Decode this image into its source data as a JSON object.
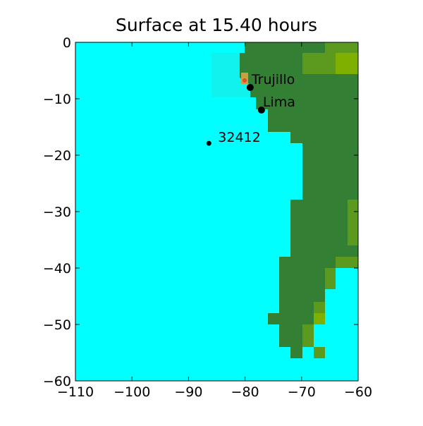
{
  "chart_data": {
    "type": "scatter",
    "title": "Surface at 15.40 hours",
    "xlim": [
      -110,
      -60
    ],
    "ylim": [
      -60,
      0
    ],
    "xticks": [
      {
        "value": -110,
        "label": "−110"
      },
      {
        "value": -100,
        "label": "−100"
      },
      {
        "value": -90,
        "label": "−90"
      },
      {
        "value": -80,
        "label": "−80"
      },
      {
        "value": -70,
        "label": "−70"
      },
      {
        "value": -60,
        "label": "−60"
      }
    ],
    "yticks": [
      0,
      {
        "value": -10,
        "label": "−10"
      },
      {
        "value": -20,
        "label": "−20"
      },
      {
        "value": -30,
        "label": "−30"
      },
      {
        "value": -40,
        "label": "−40"
      },
      {
        "value": -50,
        "label": "−50"
      },
      {
        "value": -60,
        "label": "−60"
      }
    ],
    "points": [
      {
        "name": "Trujillo",
        "x": -79.1,
        "y": -8
      },
      {
        "name": "Lima",
        "x": -77.1,
        "y": -12
      },
      {
        "name": "32412",
        "x": -86.4,
        "y": -17.9
      }
    ]
  }
}
